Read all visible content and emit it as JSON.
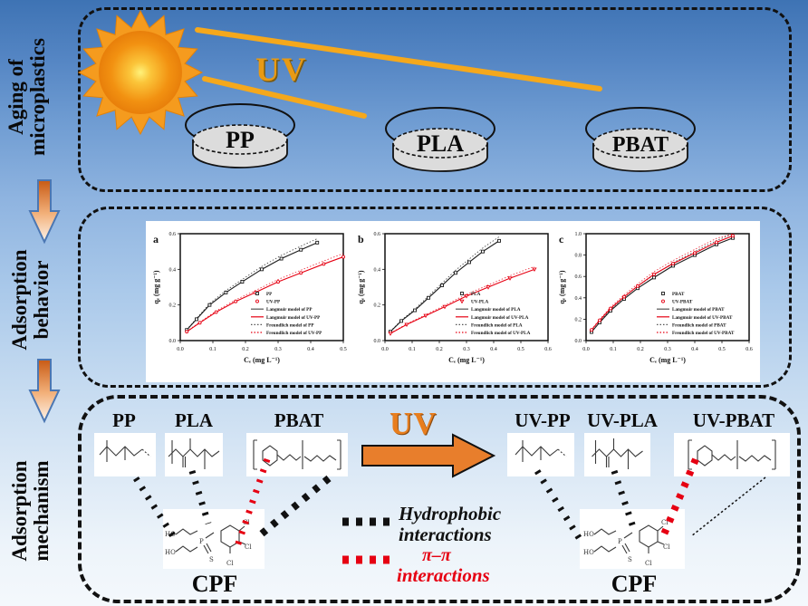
{
  "sidebar": {
    "steps": [
      {
        "line1": "Aging of",
        "line2": "microplastics"
      },
      {
        "line1": "Adsorption",
        "line2": "behavior"
      },
      {
        "line1": "Adsorption",
        "line2": "mechanism"
      }
    ]
  },
  "aging": {
    "uv": "UV",
    "dishes": [
      "PP",
      "PLA",
      "PBAT"
    ]
  },
  "chart_data": [
    {
      "panel": "a",
      "type": "scatter",
      "xlabel": "Cₑ (mg L⁻¹)",
      "ylabel": "qₑ (mg g⁻¹)",
      "xlim": [
        0,
        0.5
      ],
      "ylim": [
        0,
        0.6
      ],
      "xticks": [
        "0.0",
        "0.1",
        "0.2",
        "0.3",
        "0.4",
        "0.5"
      ],
      "yticks": [
        "0.0",
        "0.2",
        "0.4",
        "0.6"
      ],
      "grid": false,
      "legend_position": "lower-right-inside",
      "series": [
        {
          "name": "PP",
          "color": "#1a1a1a",
          "marker": "square",
          "points": [
            [
              0.02,
              0.06
            ],
            [
              0.05,
              0.12
            ],
            [
              0.09,
              0.2
            ],
            [
              0.14,
              0.27
            ],
            [
              0.19,
              0.33
            ],
            [
              0.25,
              0.4
            ],
            [
              0.31,
              0.46
            ],
            [
              0.37,
              0.51
            ],
            [
              0.42,
              0.55
            ]
          ]
        },
        {
          "name": "UV-PP",
          "color": "#e60012",
          "marker": "circle",
          "points": [
            [
              0.02,
              0.05
            ],
            [
              0.06,
              0.1
            ],
            [
              0.11,
              0.16
            ],
            [
              0.17,
              0.22
            ],
            [
              0.23,
              0.27
            ],
            [
              0.3,
              0.33
            ],
            [
              0.37,
              0.38
            ],
            [
              0.44,
              0.43
            ],
            [
              0.5,
              0.47
            ]
          ]
        }
      ],
      "model_legend": [
        "Langmuir model of PP",
        "Langmuir model of UV-PP",
        "Freundlich model of PP",
        "Freundlich model of UV-PP"
      ]
    },
    {
      "panel": "b",
      "type": "scatter",
      "xlabel": "Cₑ (mg L⁻¹)",
      "ylabel": "qₑ (mg g⁻¹)",
      "xlim": [
        0,
        0.6
      ],
      "ylim": [
        0,
        0.6
      ],
      "xticks": [
        "0.0",
        "0.1",
        "0.2",
        "0.3",
        "0.4",
        "0.5",
        "0.6"
      ],
      "yticks": [
        "0.0",
        "0.2",
        "0.4",
        "0.6"
      ],
      "grid": false,
      "legend_position": "lower-right-inside",
      "series": [
        {
          "name": "PLA",
          "color": "#1a1a1a",
          "marker": "square",
          "points": [
            [
              0.02,
              0.05
            ],
            [
              0.06,
              0.11
            ],
            [
              0.11,
              0.17
            ],
            [
              0.16,
              0.24
            ],
            [
              0.21,
              0.31
            ],
            [
              0.26,
              0.38
            ],
            [
              0.31,
              0.44
            ],
            [
              0.36,
              0.5
            ],
            [
              0.42,
              0.56
            ]
          ]
        },
        {
          "name": "UV-PLA",
          "color": "#e60012",
          "marker": "triangle",
          "points": [
            [
              0.02,
              0.04
            ],
            [
              0.08,
              0.09
            ],
            [
              0.15,
              0.14
            ],
            [
              0.22,
              0.19
            ],
            [
              0.3,
              0.25
            ],
            [
              0.38,
              0.3
            ],
            [
              0.46,
              0.35
            ],
            [
              0.55,
              0.4
            ]
          ]
        }
      ],
      "model_legend": [
        "Langmuir model of PLA",
        "Langmuir model of UV-PLA",
        "Freundlich model of PLA",
        "Freundlich model of UV-PLA"
      ]
    },
    {
      "panel": "c",
      "type": "scatter",
      "xlabel": "Cₑ (mg L⁻¹)",
      "ylabel": "qₑ (mg g⁻¹)",
      "xlim": [
        0,
        0.6
      ],
      "ylim": [
        0,
        1.0
      ],
      "xticks": [
        "0.0",
        "0.1",
        "0.2",
        "0.3",
        "0.4",
        "0.5",
        "0.6"
      ],
      "yticks": [
        "0.0",
        "0.2",
        "0.4",
        "0.6",
        "0.8",
        "1.0"
      ],
      "grid": false,
      "legend_position": "lower-right-inside",
      "series": [
        {
          "name": "PBAT",
          "color": "#1a1a1a",
          "marker": "square",
          "points": [
            [
              0.02,
              0.08
            ],
            [
              0.05,
              0.17
            ],
            [
              0.09,
              0.28
            ],
            [
              0.14,
              0.39
            ],
            [
              0.19,
              0.49
            ],
            [
              0.25,
              0.59
            ],
            [
              0.32,
              0.7
            ],
            [
              0.4,
              0.8
            ],
            [
              0.48,
              0.9
            ],
            [
              0.54,
              0.96
            ]
          ]
        },
        {
          "name": "UV-PBAT",
          "color": "#e60012",
          "marker": "circle",
          "points": [
            [
              0.02,
              0.1
            ],
            [
              0.05,
              0.19
            ],
            [
              0.09,
              0.3
            ],
            [
              0.14,
              0.41
            ],
            [
              0.19,
              0.51
            ],
            [
              0.25,
              0.62
            ],
            [
              0.32,
              0.72
            ],
            [
              0.4,
              0.82
            ],
            [
              0.48,
              0.92
            ],
            [
              0.54,
              0.98
            ]
          ]
        }
      ],
      "model_legend": [
        "Langmuir model of PBAT",
        "Langmuir model of UV-PBAT",
        "Freundlich model of PBAT",
        "Freundlich model of UV-PBAT"
      ]
    }
  ],
  "mechanism": {
    "uv": "UV",
    "left_polymers": [
      "PP",
      "PLA",
      "PBAT"
    ],
    "right_polymers": [
      "UV-PP",
      "UV-PLA",
      "UV-PBAT"
    ],
    "cpf_left": "CPF",
    "cpf_right": "CPF",
    "legend": [
      {
        "line1": "Hydrophobic",
        "line2": "interactions",
        "color": "#111111"
      },
      {
        "line1": "π–π",
        "line2": "interactions",
        "color": "#e60012"
      }
    ]
  },
  "colors": {
    "background_top": "#3e73b4",
    "background_bottom": "#f4f8fc",
    "uv_text_top": "#e89a14",
    "uv_text_bottom": "#e87e1e",
    "uv_ray": "#f5a81c",
    "uv_arrow_fill": "#e87e2c",
    "sun_core": "#ffe96b",
    "sun_body": "#f29111",
    "dish_fill": "#dcdcdc",
    "hydrophobic_line": "#111111",
    "pi_pi_line": "#e60012",
    "panel_background": "#ffffff"
  }
}
